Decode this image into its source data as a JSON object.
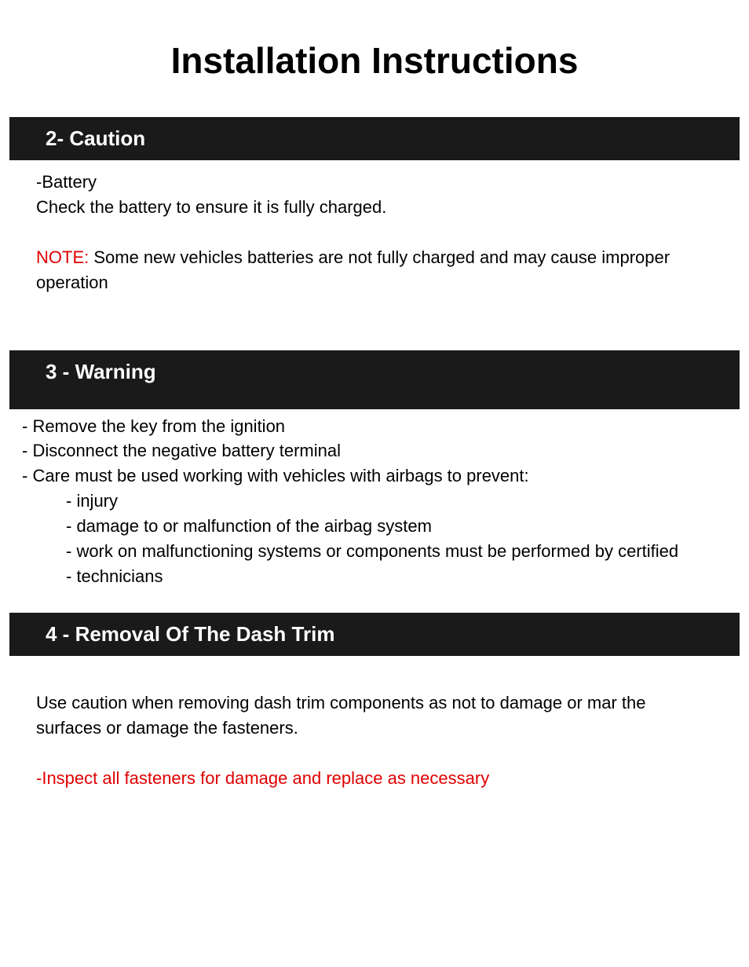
{
  "page_title": "Installation Instructions",
  "colors": {
    "header_bg": "#1a1a1a",
    "header_text": "#ffffff",
    "body_text": "#000000",
    "accent_red": "#e00000",
    "page_bg": "#ffffff"
  },
  "fonts": {
    "title_size": 46,
    "header_size": 26,
    "body_size": 22
  },
  "sections": [
    {
      "header": "2- Caution",
      "battery_label": "-Battery",
      "battery_text": "Check the battery to ensure it is fully charged.",
      "note_label": "NOTE: ",
      "note_text": "Some new vehicles batteries are not fully charged and may cause improper operation"
    },
    {
      "header": "3 -  Warning",
      "items": [
        "- Remove the key from the ignition",
        "- Disconnect the negative battery terminal",
        "- Care must be used working with vehicles with airbags to prevent:"
      ],
      "subitems": [
        "- injury",
        "- damage to or malfunction of the airbag system",
        "- work on malfunctioning systems or components must be performed by certified",
        "- technicians"
      ]
    },
    {
      "header": "4 - Removal Of  The Dash Trim",
      "body": "Use caution when removing dash trim components as not to damage or mar the surfaces or damage the  fasteners.",
      "red_line": "-Inspect all fasteners for damage and replace as necessary"
    }
  ]
}
